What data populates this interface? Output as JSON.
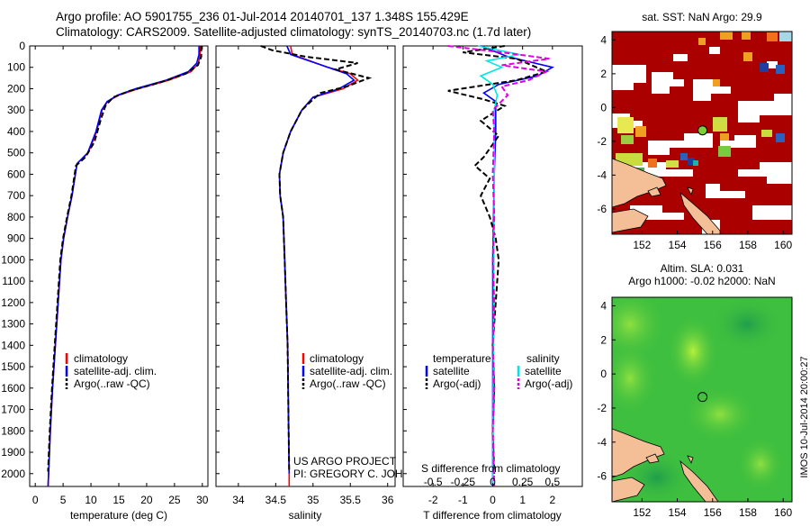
{
  "title_line1": "Argo profile: AO 5901755_236 01-Jul-2014 20140701_137 1.348S 155.429E",
  "title_line2": "Climatology: CARS2009. Satellite-adjusted climatology: synTS_20140703.nc (1.7d later)",
  "credit_line1": "US ARGO PROJECT",
  "credit_line2": "PI: GREGORY C. JOHNSON",
  "side_stamp": "IMOS 10-Jul-2014 20:00:27",
  "colors": {
    "climatology": "#ff0000",
    "satellite": "#0000ff",
    "argo": "#000000",
    "salinity_sat": "#00e5e5",
    "salinity_argo": "#e000e0",
    "sst_bg": "#aa0000",
    "land": "#f4bf97",
    "sla_bg": "#3fbf3f"
  },
  "depth_axis": {
    "range": [
      0,
      2060
    ],
    "ticks": [
      0,
      100,
      200,
      300,
      400,
      500,
      600,
      700,
      800,
      900,
      1000,
      1100,
      1200,
      1300,
      1400,
      1500,
      1600,
      1700,
      1800,
      1900,
      2000
    ]
  },
  "legend_main": [
    "climatology",
    "satellite-adj. clim.",
    "Argo(..raw -QC)"
  ],
  "legend_diff": {
    "temp_header": "temperature",
    "sal_header": "salinity",
    "items": [
      "satellite",
      "Argo(-adj)",
      "satellite",
      "Argo(-adj)"
    ]
  },
  "chart_data": [
    {
      "type": "line",
      "name": "temperature",
      "xlabel": "temperature (deg C)",
      "xlim": [
        -1,
        31
      ],
      "xticks": [
        0,
        5,
        10,
        15,
        20,
        25,
        30
      ],
      "ylim": [
        0,
        2060
      ],
      "series": [
        {
          "name": "climatology",
          "color": "#ff0000",
          "points": [
            [
              29.6,
              0
            ],
            [
              29.6,
              40
            ],
            [
              29.3,
              80
            ],
            [
              28.0,
              120
            ],
            [
              24.0,
              160
            ],
            [
              18.5,
              200
            ],
            [
              15.0,
              230
            ],
            [
              13.0,
              260
            ],
            [
              12.0,
              300
            ],
            [
              11.0,
              400
            ],
            [
              9.5,
              500
            ],
            [
              7.5,
              550
            ],
            [
              6.6,
              700
            ],
            [
              5.8,
              800
            ],
            [
              5.1,
              900
            ],
            [
              4.6,
              1000
            ],
            [
              4.1,
              1200
            ],
            [
              3.6,
              1400
            ],
            [
              3.1,
              1600
            ],
            [
              2.7,
              1800
            ],
            [
              2.4,
              2000
            ],
            [
              2.3,
              2060
            ]
          ]
        },
        {
          "name": "satellite-adj. clim.",
          "color": "#0000ff",
          "points": [
            [
              29.4,
              0
            ],
            [
              29.4,
              40
            ],
            [
              29.0,
              80
            ],
            [
              27.5,
              120
            ],
            [
              23.5,
              160
            ],
            [
              18.0,
              200
            ],
            [
              14.8,
              230
            ],
            [
              12.9,
              260
            ],
            [
              11.9,
              300
            ],
            [
              10.9,
              400
            ],
            [
              9.4,
              500
            ],
            [
              7.5,
              550
            ],
            [
              6.6,
              700
            ],
            [
              5.8,
              800
            ],
            [
              5.1,
              900
            ],
            [
              4.6,
              1000
            ],
            [
              4.1,
              1200
            ],
            [
              3.6,
              1400
            ],
            [
              3.1,
              1600
            ],
            [
              2.7,
              1800
            ],
            [
              2.4,
              2000
            ],
            [
              2.3,
              2060
            ]
          ]
        },
        {
          "name": "Argo(..raw -QC)",
          "color": "#000000",
          "dash": true,
          "points": [
            [
              29.8,
              0
            ],
            [
              29.8,
              50
            ],
            [
              29.2,
              90
            ],
            [
              27.0,
              130
            ],
            [
              22.5,
              170
            ],
            [
              17.0,
              210
            ],
            [
              14.0,
              240
            ],
            [
              12.6,
              280
            ],
            [
              11.7,
              350
            ],
            [
              10.6,
              450
            ],
            [
              9.0,
              520
            ],
            [
              7.3,
              560
            ],
            [
              6.5,
              700
            ],
            [
              5.7,
              800
            ],
            [
              5.0,
              900
            ],
            [
              4.5,
              1000
            ],
            [
              4.0,
              1200
            ],
            [
              3.5,
              1400
            ],
            [
              3.0,
              1600
            ],
            [
              2.6,
              1800
            ],
            [
              2.3,
              1990
            ]
          ]
        }
      ]
    },
    {
      "type": "line",
      "name": "salinity",
      "xlabel": "salinity",
      "xlim": [
        33.7,
        36.1
      ],
      "xticks": [
        34,
        34.5,
        35,
        35.5,
        36
      ],
      "ylim": [
        0,
        2060
      ],
      "series": [
        {
          "name": "climatology",
          "color": "#ff0000",
          "points": [
            [
              34.7,
              0
            ],
            [
              34.72,
              40
            ],
            [
              35.2,
              100
            ],
            [
              35.5,
              130
            ],
            [
              35.6,
              160
            ],
            [
              35.4,
              200
            ],
            [
              35.0,
              240
            ],
            [
              34.85,
              300
            ],
            [
              34.7,
              400
            ],
            [
              34.6,
              500
            ],
            [
              34.55,
              600
            ],
            [
              34.56,
              700
            ],
            [
              34.6,
              800
            ],
            [
              34.62,
              1000
            ],
            [
              34.64,
              1200
            ],
            [
              34.66,
              1400
            ],
            [
              34.67,
              1700
            ],
            [
              34.68,
              2000
            ],
            [
              34.68,
              2060
            ]
          ]
        },
        {
          "name": "satellite-adj. clim.",
          "color": "#0000ff",
          "points": [
            [
              34.65,
              0
            ],
            [
              34.7,
              40
            ],
            [
              35.2,
              100
            ],
            [
              35.45,
              130
            ],
            [
              35.55,
              160
            ],
            [
              35.35,
              200
            ],
            [
              35.0,
              240
            ],
            [
              34.85,
              300
            ],
            [
              34.7,
              400
            ],
            [
              34.6,
              500
            ],
            [
              34.55,
              600
            ],
            [
              34.56,
              700
            ],
            [
              34.6,
              800
            ],
            [
              34.62,
              1000
            ],
            [
              34.64,
              1200
            ],
            [
              34.66,
              1400
            ],
            [
              34.67,
              1700
            ],
            [
              34.68,
              2000
            ]
          ]
        },
        {
          "name": "Argo(..raw -QC)",
          "color": "#000000",
          "dash": true,
          "points": [
            [
              34.3,
              0
            ],
            [
              34.45,
              20
            ],
            [
              34.9,
              50
            ],
            [
              35.6,
              80
            ],
            [
              35.3,
              110
            ],
            [
              35.75,
              150
            ],
            [
              35.45,
              190
            ],
            [
              35.1,
              220
            ],
            [
              35.0,
              250
            ],
            [
              34.85,
              300
            ],
            [
              34.7,
              400
            ],
            [
              34.6,
              500
            ],
            [
              34.55,
              600
            ],
            [
              34.56,
              700
            ],
            [
              34.6,
              800
            ],
            [
              34.62,
              1000
            ],
            [
              34.64,
              1200
            ],
            [
              34.66,
              1400
            ],
            [
              34.67,
              1700
            ],
            [
              34.68,
              1990
            ]
          ]
        }
      ]
    },
    {
      "type": "line",
      "name": "difference from climatology",
      "xlabel": "T difference from climatology",
      "xlabel_top": "S difference from climatology",
      "xlim": [
        -3,
        3
      ],
      "xticks": [
        -2,
        -1,
        0,
        1,
        2
      ],
      "xticklabels_top": [
        "-0.5",
        "-0.25",
        "0",
        "0.25",
        "0.5"
      ],
      "xticks_top": [
        -2,
        -1,
        0,
        1,
        2
      ],
      "ylim": [
        0,
        2060
      ],
      "series": [
        {
          "name": "satellite T",
          "color": "#0000ff",
          "points": [
            [
              -0.4,
              0
            ],
            [
              0.5,
              50
            ],
            [
              2.0,
              100
            ],
            [
              1.5,
              140
            ],
            [
              0.2,
              180
            ],
            [
              -0.3,
              220
            ],
            [
              0.1,
              260
            ],
            [
              0.1,
              400
            ],
            [
              0.05,
              600
            ],
            [
              0,
              1000
            ],
            [
              0,
              2060
            ]
          ]
        },
        {
          "name": "Argo(-adj) T",
          "color": "#000000",
          "dash": true,
          "points": [
            [
              0.4,
              0
            ],
            [
              -1.0,
              30
            ],
            [
              0.8,
              60
            ],
            [
              1.8,
              120
            ],
            [
              0.8,
              160
            ],
            [
              -1.5,
              210
            ],
            [
              -0.3,
              250
            ],
            [
              0.4,
              280
            ],
            [
              -0.4,
              350
            ],
            [
              0.2,
              420
            ],
            [
              -0.3,
              520
            ],
            [
              -0.6,
              560
            ],
            [
              -0.1,
              620
            ],
            [
              -0.4,
              700
            ],
            [
              -0.1,
              800
            ],
            [
              0.1,
              900
            ],
            [
              0.2,
              1000
            ],
            [
              0.1,
              1200
            ],
            [
              0,
              1400
            ],
            [
              0.05,
              1600
            ],
            [
              0,
              1800
            ],
            [
              0.05,
              2000
            ]
          ]
        },
        {
          "name": "satellite S",
          "color": "#00e5e5",
          "points": [
            [
              -0.5,
              0
            ],
            [
              0.9,
              40
            ],
            [
              -0.2,
              70
            ],
            [
              0.3,
              100
            ],
            [
              -0.4,
              140
            ],
            [
              0,
              180
            ],
            [
              0.15,
              230
            ],
            [
              0.05,
              300
            ],
            [
              0.05,
              600
            ],
            [
              0,
              2060
            ]
          ]
        },
        {
          "name": "Argo(-adj) S",
          "color": "#e000e0",
          "dash": true,
          "points": [
            [
              -1.5,
              0
            ],
            [
              0.3,
              30
            ],
            [
              1.9,
              60
            ],
            [
              0.3,
              90
            ],
            [
              1.8,
              120
            ],
            [
              1.2,
              160
            ],
            [
              0.3,
              190
            ],
            [
              0.5,
              230
            ],
            [
              0,
              300
            ],
            [
              0.05,
              400
            ],
            [
              0,
              600
            ],
            [
              0.05,
              800
            ],
            [
              0,
              1000
            ],
            [
              0.05,
              1200
            ],
            [
              0,
              1400
            ],
            [
              0.05,
              1600
            ],
            [
              0,
              1800
            ],
            [
              0.05,
              2060
            ]
          ]
        }
      ]
    },
    {
      "type": "heatmap",
      "name": "sat. SST map",
      "title": "sat. SST: NaN Argo: 29.9",
      "xlim": [
        150.3,
        160.5
      ],
      "ylim": [
        -7.5,
        4.5
      ],
      "xticks": [
        152,
        154,
        156,
        158,
        160
      ],
      "yticks": [
        4,
        2,
        0,
        -2,
        -4,
        -6
      ],
      "argo_position": [
        155.43,
        -1.35
      ]
    },
    {
      "type": "heatmap",
      "name": "altimetry SLA map",
      "title_line1": "Altim. SLA: 0.031",
      "title_line2": "Argo h1000: -0.02 h2000: NaN",
      "xlim": [
        150.3,
        160.5
      ],
      "ylim": [
        -7.5,
        4.5
      ],
      "xticks": [
        152,
        154,
        156,
        158,
        160
      ],
      "yticks": [
        4,
        2,
        0,
        -2,
        -4,
        -6
      ],
      "argo_position": [
        155.43,
        -1.35
      ]
    }
  ]
}
